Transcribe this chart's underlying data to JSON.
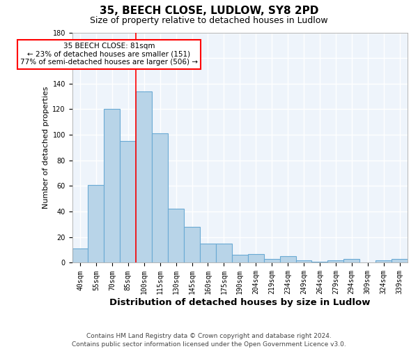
{
  "title": "35, BEECH CLOSE, LUDLOW, SY8 2PD",
  "subtitle": "Size of property relative to detached houses in Ludlow",
  "xlabel": "Distribution of detached houses by size in Ludlow",
  "ylabel": "Number of detached properties",
  "categories": [
    "40sqm",
    "55sqm",
    "70sqm",
    "85sqm",
    "100sqm",
    "115sqm",
    "130sqm",
    "145sqm",
    "160sqm",
    "175sqm",
    "190sqm",
    "204sqm",
    "219sqm",
    "234sqm",
    "249sqm",
    "264sqm",
    "279sqm",
    "294sqm",
    "309sqm",
    "324sqm",
    "339sqm"
  ],
  "values": [
    11,
    61,
    120,
    95,
    134,
    101,
    42,
    28,
    15,
    15,
    6,
    7,
    3,
    5,
    2,
    1,
    2,
    3,
    0,
    2,
    3
  ],
  "bar_color": "#b8d4e8",
  "bar_edge_color": "#6aaad4",
  "red_line_x": 3.5,
  "annotation_line1": "35 BEECH CLOSE: 81sqm",
  "annotation_line2": "← 23% of detached houses are smaller (151)",
  "annotation_line3": "77% of semi-detached houses are larger (506) →",
  "ylim": [
    0,
    180
  ],
  "yticks": [
    0,
    20,
    40,
    60,
    80,
    100,
    120,
    140,
    160,
    180
  ],
  "footnote": "Contains HM Land Registry data © Crown copyright and database right 2024.\nContains public sector information licensed under the Open Government Licence v3.0.",
  "bg_color": "#eef4fb",
  "grid_color": "#ffffff",
  "title_fontsize": 11,
  "subtitle_fontsize": 9,
  "xlabel_fontsize": 9.5,
  "ylabel_fontsize": 8,
  "tick_fontsize": 7,
  "footnote_fontsize": 6.5,
  "annotation_fontsize": 7.5
}
